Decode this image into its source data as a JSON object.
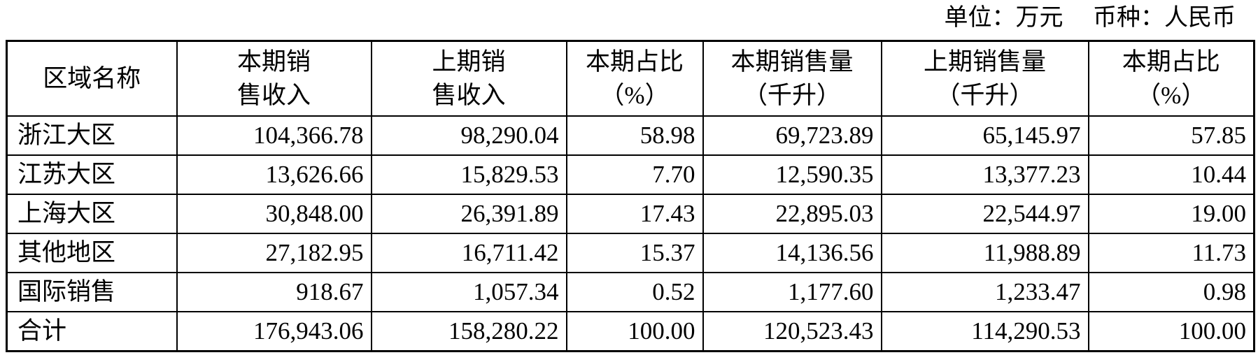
{
  "unit_label": "单位：万元　 币种：人民币",
  "headers": [
    "区域名称",
    "本期销售收入",
    "上期销售收入",
    "本期占比（%）",
    "本期销售量（千升）",
    "上期销售量（千升）",
    "本期占比（%）"
  ],
  "rows": [
    [
      "浙江大区",
      "104,366.78",
      "98,290.04",
      "58.98",
      "69,723.89",
      "65,145.97",
      "57.85"
    ],
    [
      "江苏大区",
      "13,626.66",
      "15,829.53",
      "7.70",
      "12,590.35",
      "13,377.23",
      "10.44"
    ],
    [
      "上海大区",
      "30,848.00",
      "26,391.89",
      "17.43",
      "22,895.03",
      "22,544.97",
      "19.00"
    ],
    [
      "其他地区",
      "27,182.95",
      "16,711.42",
      "15.37",
      "14,136.56",
      "11,988.89",
      "11.73"
    ],
    [
      "国际销售",
      "918.67",
      "1,057.34",
      "0.52",
      "1,177.60",
      "1,233.47",
      "0.98"
    ],
    [
      "合计",
      "176,943.06",
      "158,280.22",
      "100.00",
      "120,523.43",
      "114,290.53",
      "100.00"
    ]
  ]
}
